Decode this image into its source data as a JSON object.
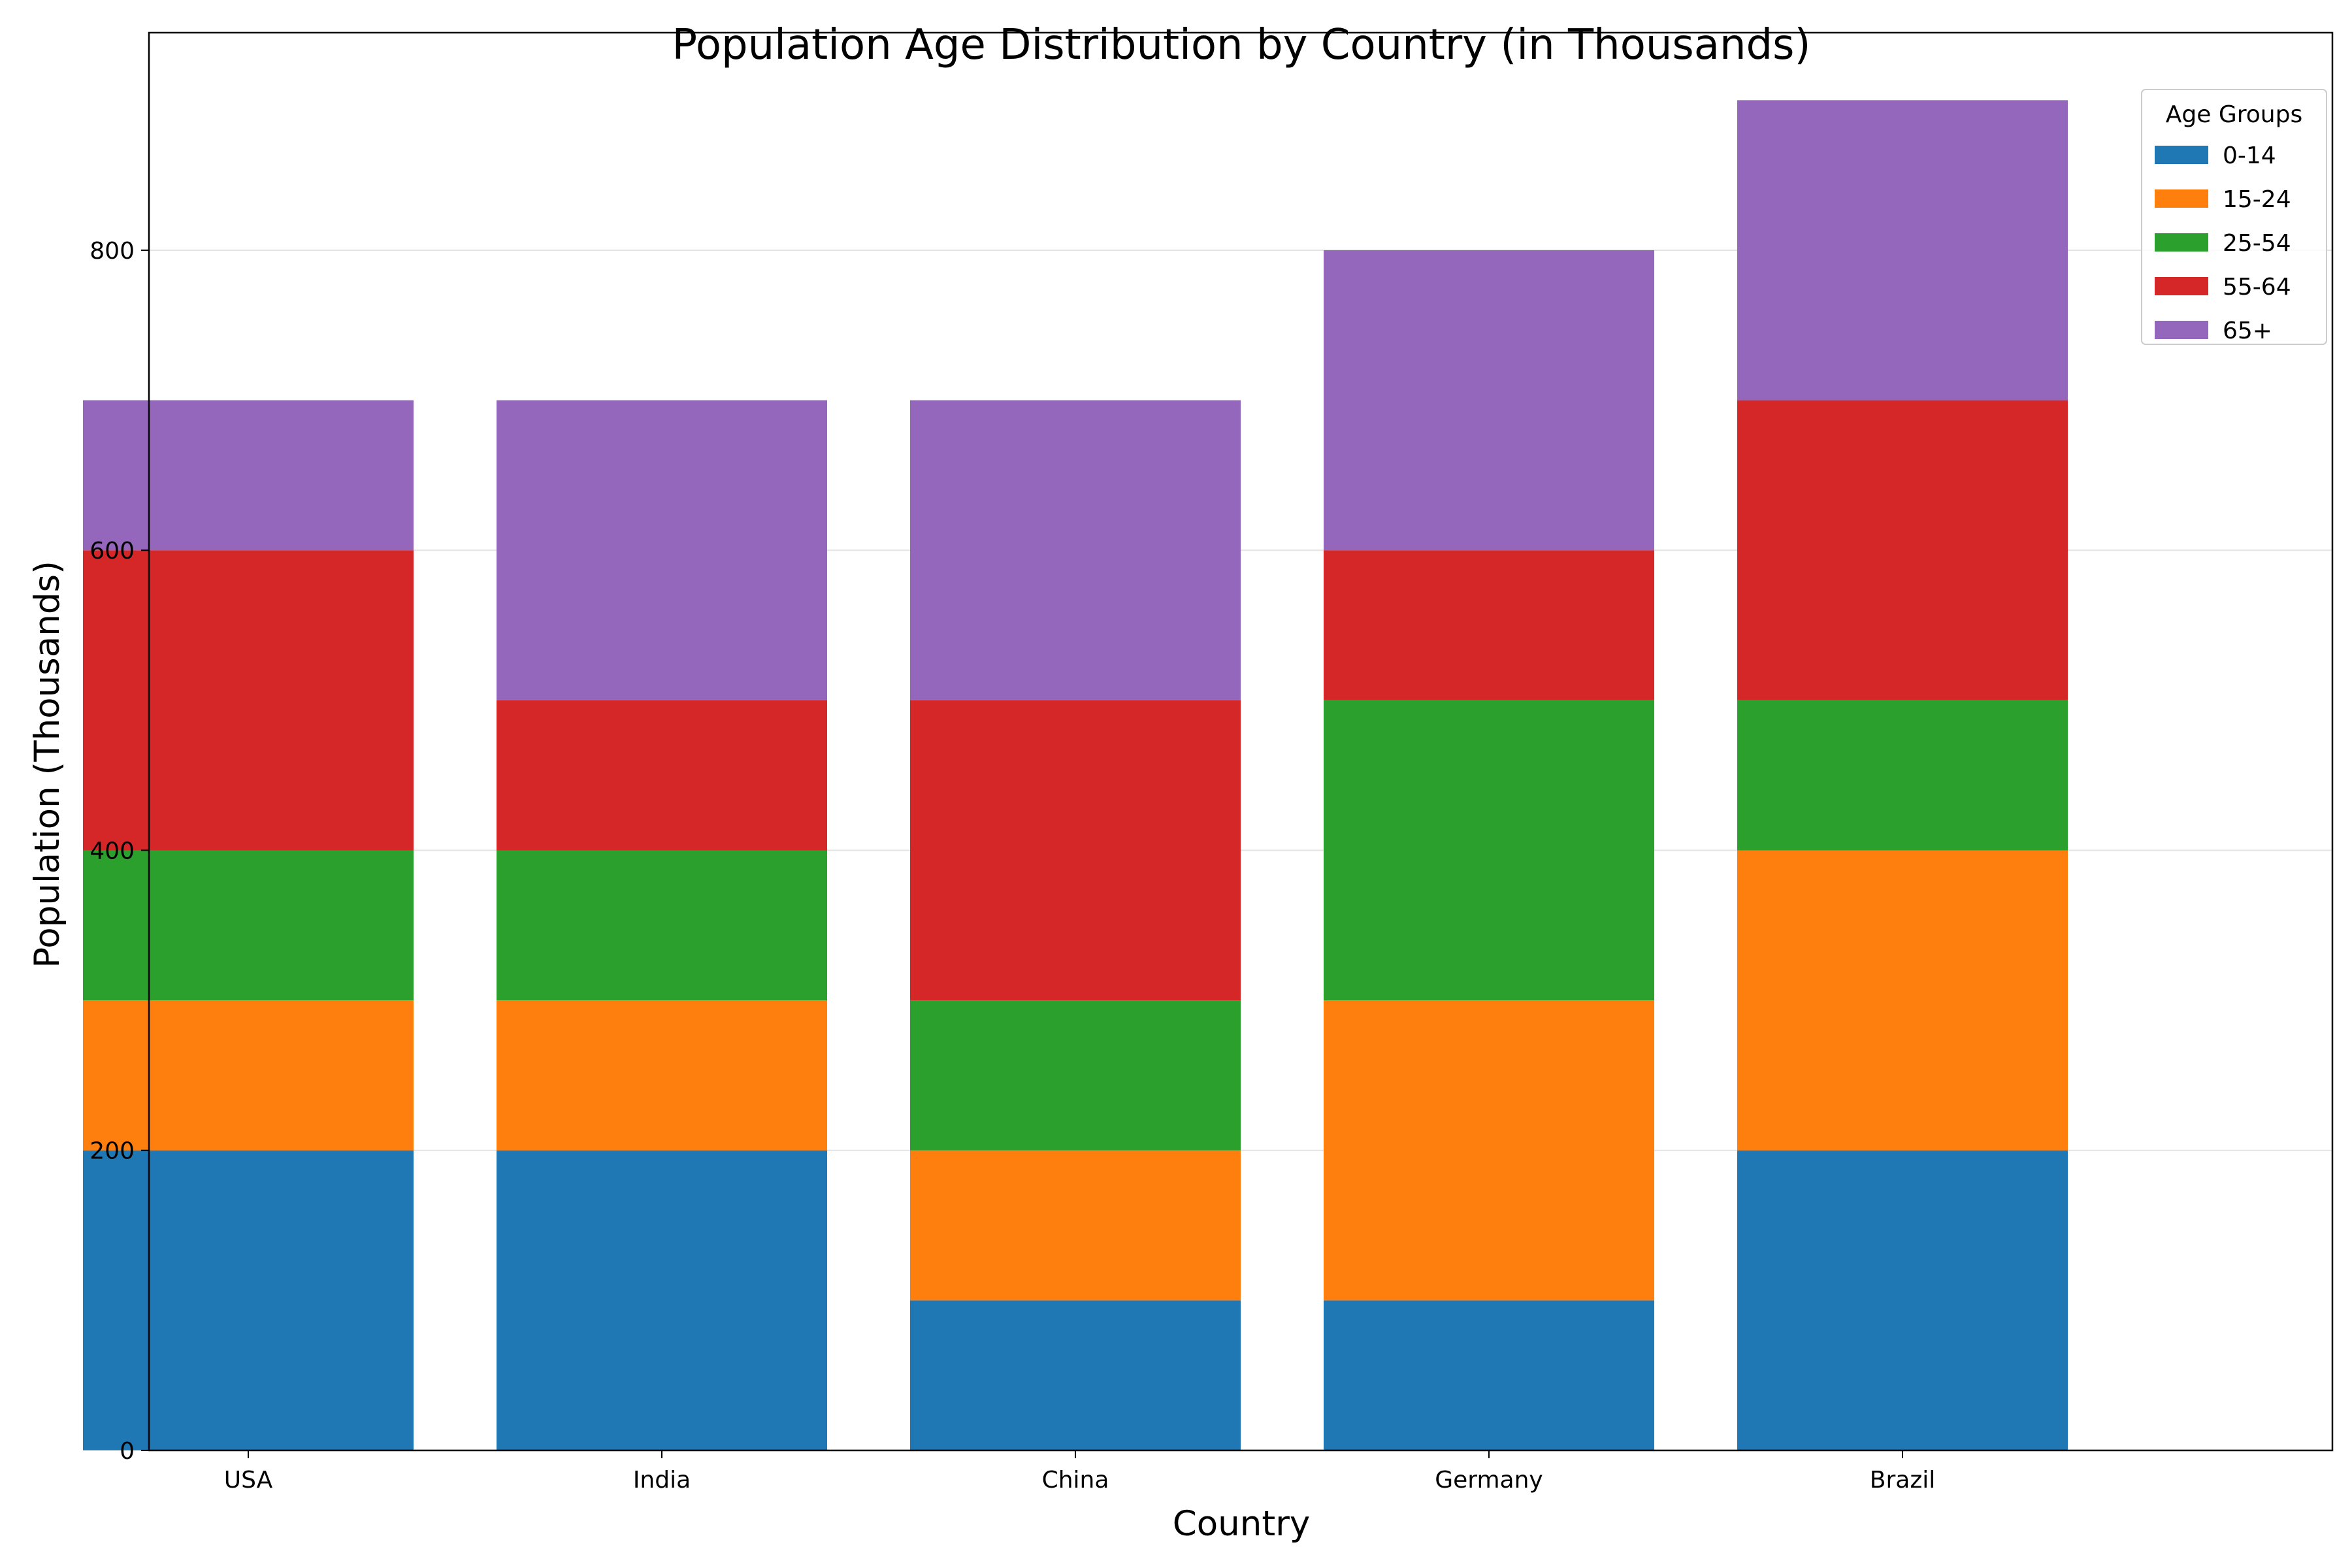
{
  "chart_data": {
    "type": "bar",
    "stacked": true,
    "title": "Population Age Distribution by Country (in Thousands)",
    "xlabel": "Country",
    "ylabel": "Population (Thousands)",
    "categories": [
      "USA",
      "India",
      "China",
      "Germany",
      "Brazil"
    ],
    "ylim": [
      0,
      945
    ],
    "yticks": [
      0,
      200,
      400,
      600,
      800
    ],
    "grid": "horizontal",
    "legend": {
      "title": "Age Groups",
      "placement": "top-right"
    },
    "series": [
      {
        "name": "0-14",
        "color": "#1f77b4",
        "values": [
          200,
          200,
          100,
          100,
          200
        ]
      },
      {
        "name": "15-24",
        "color": "#ff7f0e",
        "values": [
          100,
          100,
          100,
          200,
          200
        ]
      },
      {
        "name": "25-54",
        "color": "#2ca02c",
        "values": [
          100,
          100,
          100,
          200,
          100
        ]
      },
      {
        "name": "55-64",
        "color": "#d62728",
        "values": [
          200,
          100,
          200,
          100,
          200
        ]
      },
      {
        "name": "65+",
        "color": "#9467bd",
        "values": [
          100,
          200,
          200,
          200,
          200
        ]
      }
    ]
  }
}
